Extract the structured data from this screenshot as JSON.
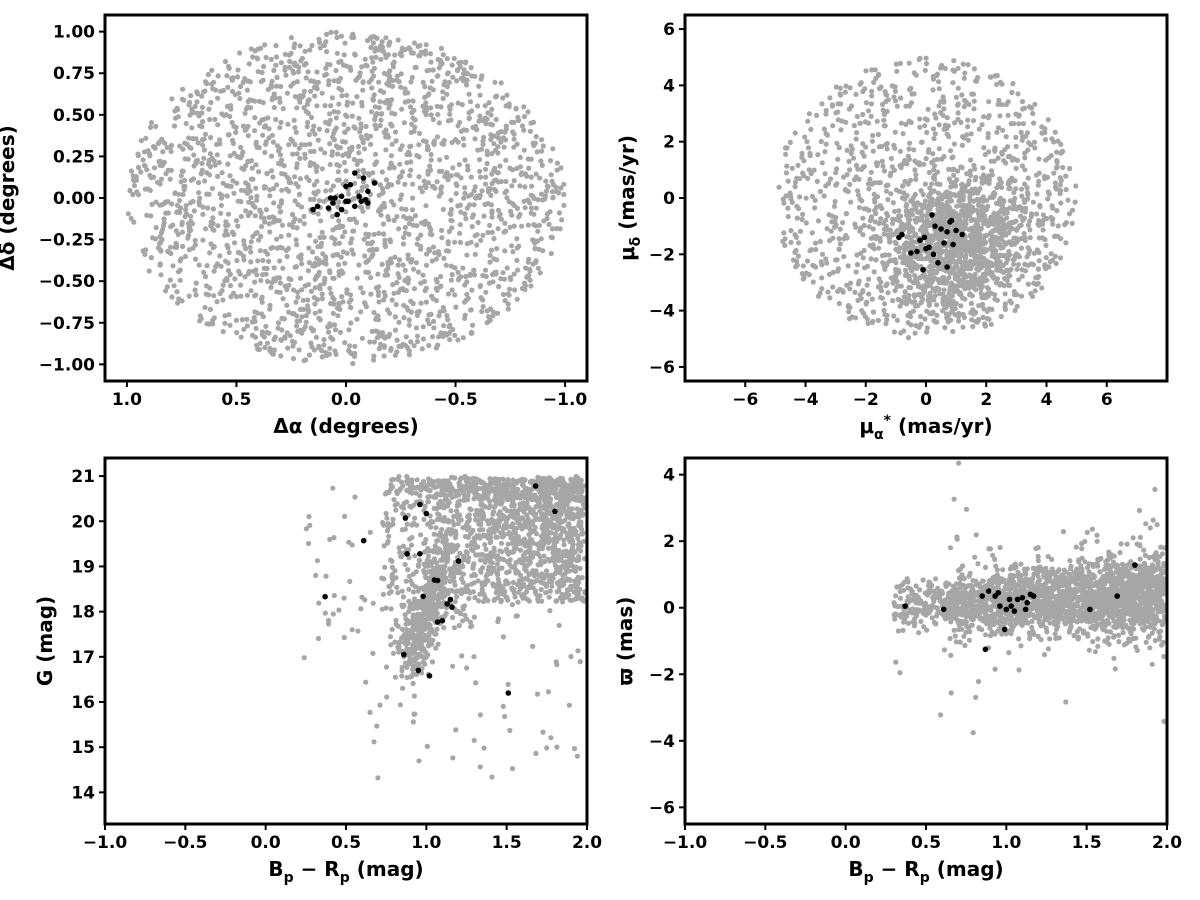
{
  "chart_data": [
    {
      "type": "scatter",
      "xlabel": "Δα (degrees)",
      "ylabel": "Δδ (degrees)",
      "xlim": [
        1.1,
        -1.1
      ],
      "ylim": [
        -1.1,
        1.1
      ],
      "x_inverted": true,
      "xticks": [
        1.0,
        0.5,
        0.0,
        -0.5,
        -1.0
      ],
      "xtick_labels": [
        "1.0",
        "0.5",
        "0.0",
        "−0.5",
        "−1.0"
      ],
      "yticks": [
        1.0,
        0.75,
        0.5,
        0.25,
        0.0,
        -0.25,
        -0.5,
        -0.75,
        -1.0
      ],
      "ytick_labels": [
        "1.00",
        "0.75",
        "0.50",
        "0.25",
        "0.00",
        "−0.25",
        "−0.50",
        "−0.75",
        "−1.00"
      ],
      "grid": false,
      "series": [
        {
          "color": "#a6a6a6",
          "distribution": "field stars uniformly filling a circle of radius 1.0 deg",
          "center": [
            0.0,
            0.0
          ],
          "radius": 1.0,
          "count": 2200
        },
        {
          "color": "#000000",
          "points": [
            [
              0.13,
              -0.05
            ],
            [
              0.15,
              -0.07
            ],
            [
              0.07,
              0.0
            ],
            [
              0.02,
              0.01
            ],
            [
              -0.01,
              -0.02
            ],
            [
              0.0,
              0.07
            ],
            [
              -0.02,
              0.08
            ],
            [
              -0.04,
              0.15
            ],
            [
              -0.08,
              0.12
            ],
            [
              -0.09,
              -0.01
            ],
            [
              -0.1,
              -0.03
            ],
            [
              -0.13,
              0.09
            ],
            [
              -0.1,
              0.04
            ],
            [
              -0.06,
              0.01
            ],
            [
              -0.04,
              -0.05
            ],
            [
              0.04,
              -0.1
            ],
            [
              0.08,
              -0.06
            ],
            [
              0.0,
              -0.02
            ],
            [
              0.06,
              -0.03
            ],
            [
              0.02,
              -0.07
            ],
            [
              -0.07,
              -0.02
            ],
            [
              0.05,
              0.0
            ]
          ]
        }
      ]
    },
    {
      "type": "scatter",
      "xlabel_main": "μ",
      "xlabel_sub": "α",
      "xlabel_sup": "*",
      "xlabel_unit": " (mas/yr)",
      "ylabel_main": "μ",
      "ylabel_sub": "δ",
      "ylabel_unit": " (mas/yr)",
      "xlim": [
        -8,
        8
      ],
      "ylim": [
        -6.5,
        6.5
      ],
      "xticks": [
        -6,
        -4,
        -2,
        0,
        2,
        4,
        6
      ],
      "xtick_labels": [
        "−6",
        "−4",
        "−2",
        "0",
        "2",
        "4",
        "6"
      ],
      "yticks": [
        -6,
        -4,
        -2,
        0,
        2,
        4,
        6
      ],
      "ytick_labels": [
        "−6",
        "−4",
        "−2",
        "0",
        "2",
        "4",
        "6"
      ],
      "grid": false,
      "series": [
        {
          "color": "#a6a6a6",
          "distribution": "field stars in a circle of radius 5 mas/yr with a dense core",
          "center": [
            0.0,
            0.0
          ],
          "radius": 5.0,
          "core_center": [
            1.0,
            -1.6
          ],
          "core_spread": [
            1.2,
            1.2
          ],
          "count": 2200
        },
        {
          "color": "#000000",
          "points": [
            [
              -0.8,
              -1.3
            ],
            [
              -0.5,
              -1.95
            ],
            [
              0.3,
              -1.0
            ],
            [
              0.5,
              -1.1
            ],
            [
              -0.2,
              -1.5
            ],
            [
              0.0,
              -1.8
            ],
            [
              0.1,
              -1.75
            ],
            [
              -0.1,
              -2.55
            ],
            [
              0.4,
              -2.3
            ],
            [
              0.7,
              -2.45
            ],
            [
              0.6,
              -1.6
            ],
            [
              0.9,
              -1.65
            ],
            [
              0.8,
              -0.85
            ],
            [
              1.0,
              -1.15
            ],
            [
              1.2,
              -1.3
            ],
            [
              -0.3,
              -1.9
            ],
            [
              0.25,
              -2.0
            ],
            [
              0.85,
              -0.8
            ],
            [
              -0.05,
              -1.4
            ],
            [
              0.2,
              -0.6
            ],
            [
              0.7,
              -1.2
            ],
            [
              -0.9,
              -1.4
            ]
          ]
        }
      ]
    },
    {
      "type": "scatter",
      "xlabel_main": "B",
      "xlabel_sub1": "p",
      "xlabel_mid": " − R",
      "xlabel_sub2": "p",
      "xlabel_unit": " (mag)",
      "ylabel": "G (mag)",
      "xlim": [
        -1.0,
        2.0
      ],
      "ylim": [
        13.3,
        21.4
      ],
      "y_inverted": false,
      "xticks": [
        -1.0,
        -0.5,
        0.0,
        0.5,
        1.0,
        1.5,
        2.0
      ],
      "xtick_labels": [
        "−1.0",
        "−0.5",
        "0.0",
        "0.5",
        "1.0",
        "1.5",
        "2.0"
      ],
      "yticks": [
        14,
        15,
        16,
        17,
        18,
        19,
        20,
        21
      ],
      "ytick_labels": [
        "14",
        "15",
        "16",
        "17",
        "18",
        "19",
        "20",
        "21"
      ],
      "grid": false,
      "series": [
        {
          "color": "#a6a6a6",
          "distribution": "field color-magnitude diagram: main sequence band from (0.9,17) rising to red faint end (1.9,20.5)",
          "count": 2200
        },
        {
          "color": "#000000",
          "points": [
            [
              0.37,
              18.33
            ],
            [
              0.61,
              19.57
            ],
            [
              0.86,
              17.05
            ],
            [
              0.87,
              20.07
            ],
            [
              0.88,
              19.28
            ],
            [
              0.95,
              16.7
            ],
            [
              0.96,
              19.28
            ],
            [
              0.96,
              20.37
            ],
            [
              0.98,
              18.34
            ],
            [
              1.0,
              20.17
            ],
            [
              1.02,
              16.58
            ],
            [
              1.05,
              18.7
            ],
            [
              1.07,
              17.77
            ],
            [
              1.1,
              17.8
            ],
            [
              1.07,
              18.69
            ],
            [
              1.13,
              18.17
            ],
            [
              1.15,
              18.27
            ],
            [
              1.16,
              18.1
            ],
            [
              1.2,
              19.12
            ],
            [
              1.51,
              16.2
            ],
            [
              1.68,
              20.78
            ],
            [
              1.8,
              20.22
            ]
          ]
        }
      ]
    },
    {
      "type": "scatter",
      "xlabel_main": "B",
      "xlabel_sub1": "p",
      "xlabel_mid": " − R",
      "xlabel_sub2": "p",
      "xlabel_unit": " (mag)",
      "ylabel": "ϖ (mas)",
      "xlim": [
        -1.0,
        2.0
      ],
      "ylim": [
        -6.5,
        4.5
      ],
      "xticks": [
        -1.0,
        -0.5,
        0.0,
        0.5,
        1.0,
        1.5,
        2.0
      ],
      "xtick_labels": [
        "−1.0",
        "−0.5",
        "0.0",
        "0.5",
        "1.0",
        "1.5",
        "2.0"
      ],
      "yticks": [
        -6,
        -4,
        -2,
        0,
        2,
        4
      ],
      "ytick_labels": [
        "−6",
        "−4",
        "−2",
        "0",
        "2",
        "4"
      ],
      "grid": false,
      "series": [
        {
          "color": "#a6a6a6",
          "distribution": "parallax vs color: band centered near 0-0.5 mas widening to the red",
          "count": 2200
        },
        {
          "color": "#000000",
          "points": [
            [
              0.37,
              0.05
            ],
            [
              0.61,
              -0.05
            ],
            [
              0.85,
              0.35
            ],
            [
              0.87,
              -1.25
            ],
            [
              0.89,
              0.5
            ],
            [
              0.93,
              0.35
            ],
            [
              0.95,
              0.45
            ],
            [
              0.96,
              0.05
            ],
            [
              0.99,
              -0.65
            ],
            [
              1.0,
              -0.05
            ],
            [
              1.02,
              0.25
            ],
            [
              1.03,
              0.05
            ],
            [
              1.05,
              -0.1
            ],
            [
              1.07,
              0.25
            ],
            [
              1.1,
              0.3
            ],
            [
              1.12,
              -0.05
            ],
            [
              1.15,
              0.4
            ],
            [
              1.17,
              0.35
            ],
            [
              1.52,
              -0.05
            ],
            [
              1.69,
              0.35
            ],
            [
              1.8,
              1.28
            ],
            [
              1.13,
              0.15
            ]
          ]
        }
      ]
    }
  ]
}
